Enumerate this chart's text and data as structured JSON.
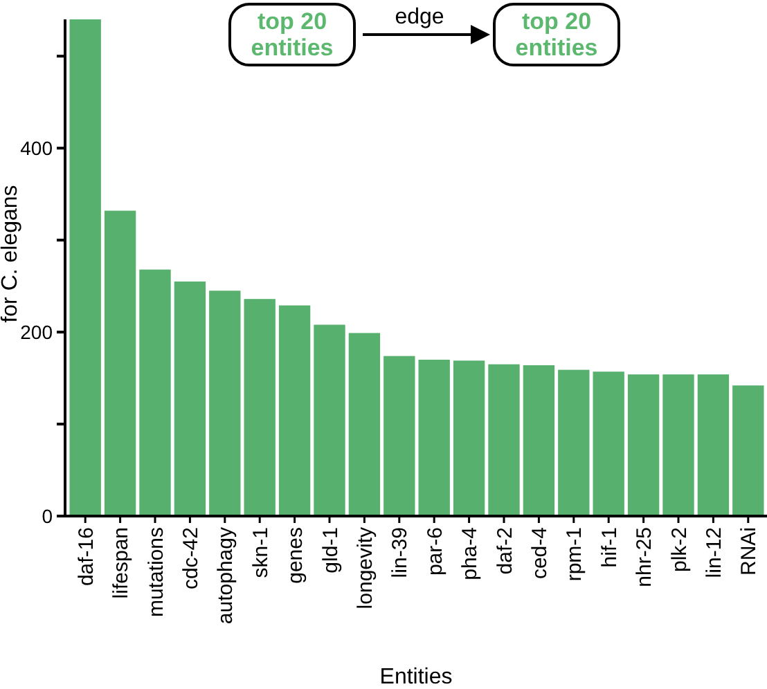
{
  "chart_data": {
    "type": "bar",
    "xlabel": "Entities",
    "ylabel": "for C. elegans",
    "categories": [
      "daf-16",
      "lifespan",
      "mutations",
      "cdc-42",
      "autophagy",
      "skn-1",
      "genes",
      "gld-1",
      "longevity",
      "lin-39",
      "par-6",
      "pha-4",
      "daf-2",
      "ced-4",
      "rpm-1",
      "hif-1",
      "nhr-25",
      "plk-2",
      "lin-12",
      "RNAi"
    ],
    "values": [
      540,
      332,
      268,
      255,
      245,
      236,
      229,
      208,
      199,
      174,
      170,
      169,
      165,
      164,
      159,
      157,
      154,
      154,
      154,
      142
    ],
    "color": "#57b06d",
    "ylim": [
      0,
      540
    ],
    "yticks": [
      0,
      {
        "value": 100,
        "label": null
      },
      200,
      {
        "value": 300,
        "label": null
      },
      400,
      {
        "value": 500,
        "label": null
      }
    ],
    "grid": false,
    "annotations": [
      "top 20 entities",
      "edge",
      "top 20 entities"
    ]
  }
}
